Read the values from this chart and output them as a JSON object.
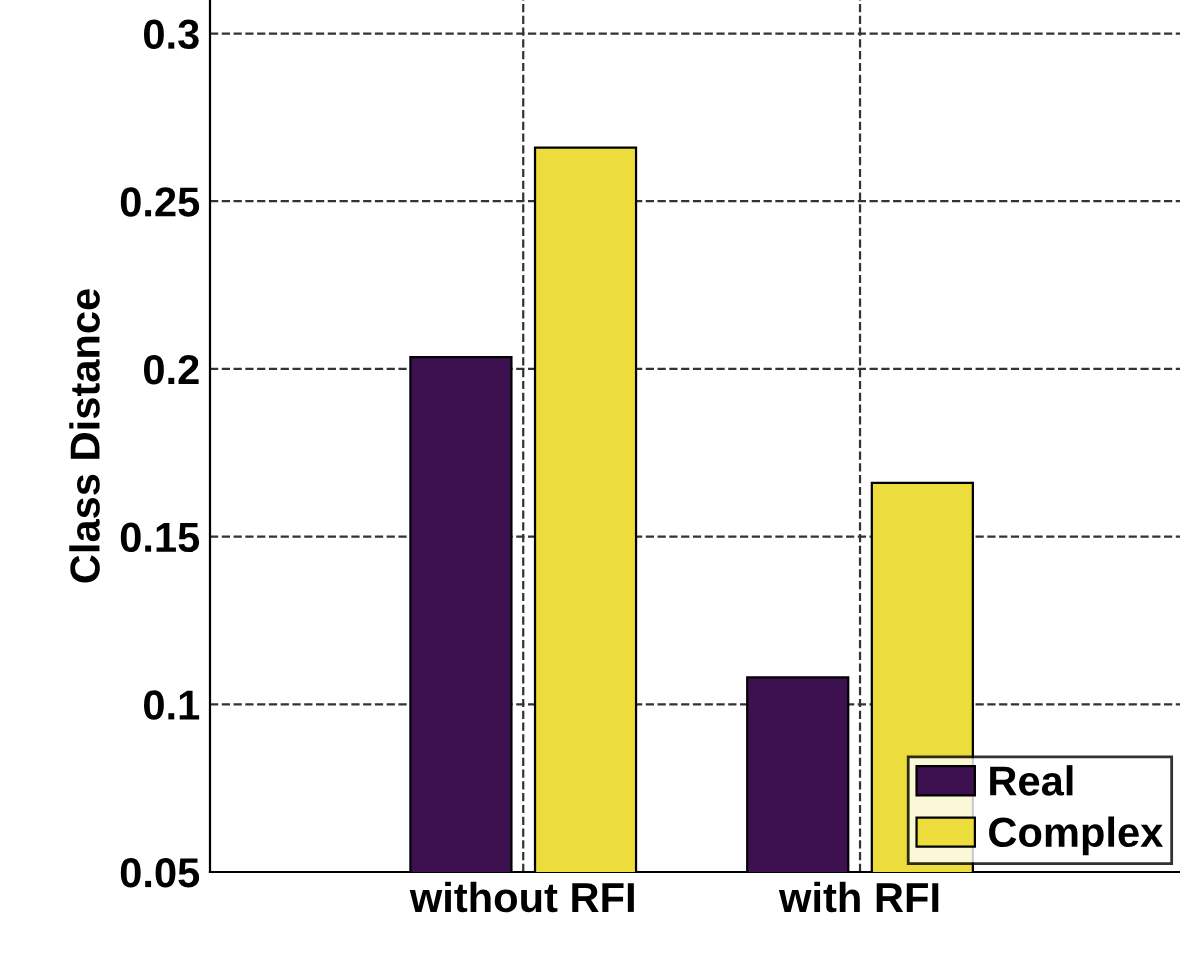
{
  "chart_data": {
    "type": "bar",
    "ylabel": "Class Distance",
    "categories": [
      "without RFI",
      "with RFI"
    ],
    "series": [
      {
        "name": "Real",
        "color": "#3d1050",
        "values": [
          0.2035,
          0.108
        ]
      },
      {
        "name": "Complex",
        "color": "#ecdc3c",
        "values": [
          0.266,
          0.166
        ]
      }
    ],
    "ylim": [
      0.05,
      0.31
    ],
    "yticks": [
      0.05,
      0.1,
      0.15,
      0.2,
      0.25,
      0.3
    ],
    "grid": true,
    "legend": "bottom right"
  }
}
